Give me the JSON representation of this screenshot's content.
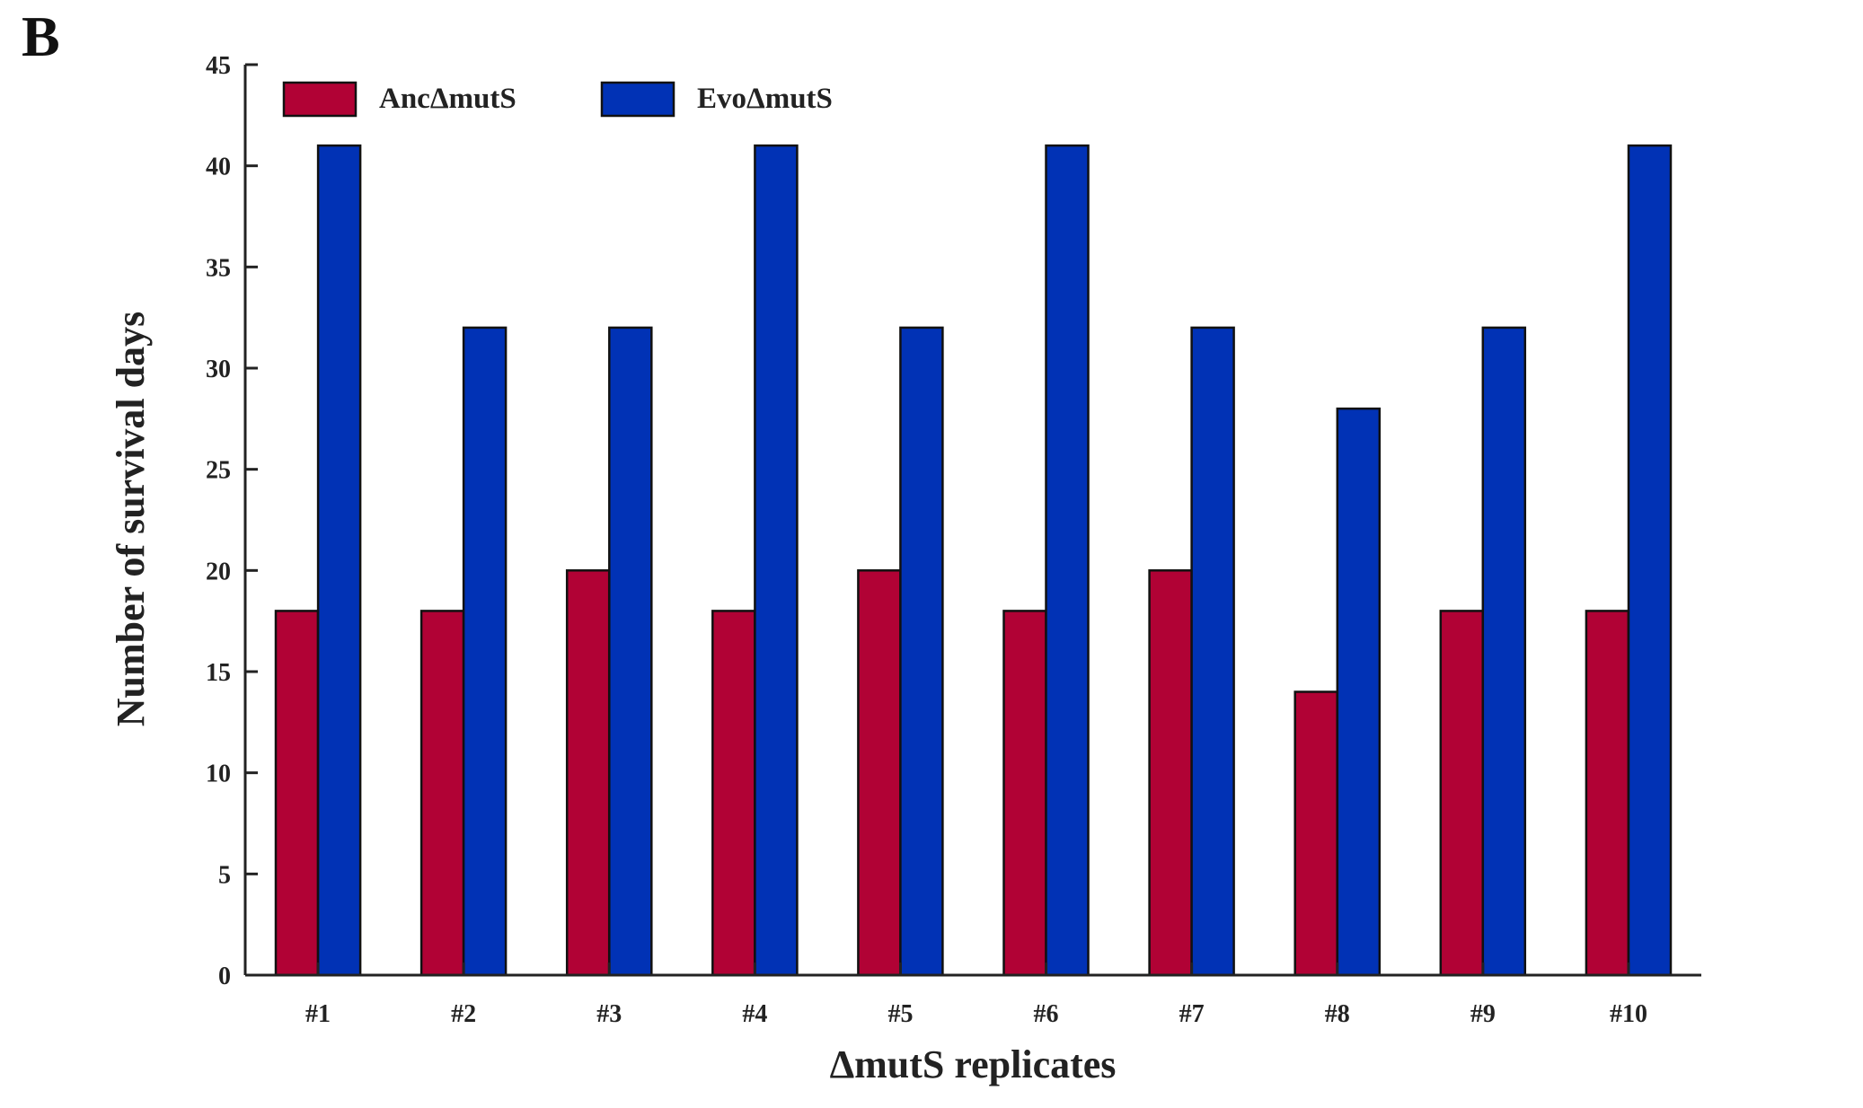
{
  "panel_label": "B",
  "chart_data": {
    "type": "bar",
    "title": "",
    "xlabel": "ΔmutS replicates",
    "ylabel": "Number of survival days",
    "categories": [
      "#1",
      "#2",
      "#3",
      "#4",
      "#5",
      "#6",
      "#7",
      "#8",
      "#9",
      "#10"
    ],
    "series": [
      {
        "name": "AncΔmutS",
        "color": "#b10235",
        "values": [
          18,
          18,
          20,
          18,
          20,
          18,
          20,
          14,
          18,
          18
        ]
      },
      {
        "name": "EvoΔmutS",
        "color": "#0132b5",
        "values": [
          41,
          32,
          32,
          41,
          32,
          41,
          32,
          28,
          32,
          41
        ]
      }
    ],
    "ylim": [
      0,
      45
    ],
    "yticks": [
      0,
      5,
      10,
      15,
      20,
      25,
      30,
      35,
      40,
      45
    ],
    "grid": false,
    "legend_position": "top-left"
  }
}
